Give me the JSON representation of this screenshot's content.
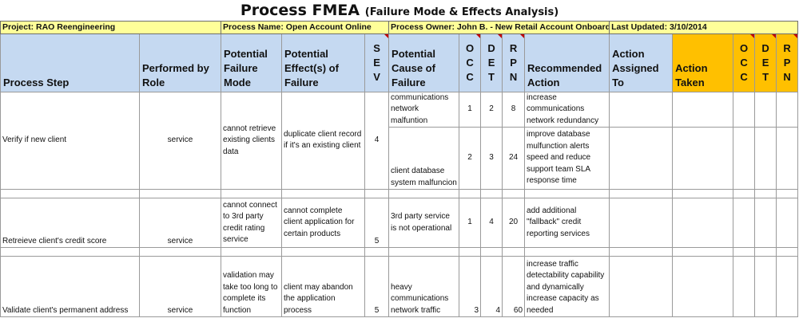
{
  "title": "Process FMEA",
  "subtitle": "(Failure Mode & Effects Analysis)",
  "info": {
    "project": "Project: RAO Reengineering",
    "process_name": "Process Name: Open Account Online",
    "process_owner": "Process Owner: John B. - New Retail Account Onboarding",
    "last_updated": "Last Updated: 3/10/2014"
  },
  "headers": {
    "process_step": "Process Step",
    "performed_by": "Performed by Role",
    "failure_mode": "Potential Failure Mode",
    "effects": "Potential Effect(s) of Failure",
    "sev": "S E V",
    "cause": "Potential Cause of Failure",
    "occ": "O C C",
    "det": "D E T",
    "rpn": "R P N",
    "recommended": "Recommended Action",
    "assigned": "Action Assigned To",
    "taken": "Action Taken",
    "occ2": "O C C",
    "det2": "D E T",
    "rpn2": "R P N"
  },
  "rows": [
    {
      "step": "Verify if new client",
      "role": "service",
      "failure_mode": "cannot retrieve existing clients data",
      "effects": "duplicate client record if it's an existing client",
      "sev": "4",
      "causes": [
        {
          "cause": "communications network malfuntion",
          "occ": "1",
          "det": "2",
          "rpn": "8",
          "action": "increase communications network redundancy"
        },
        {
          "cause": "client database system malfuncion",
          "occ": "2",
          "det": "3",
          "rpn": "24",
          "action": "improve database mulfunction alerts speed and reduce support team SLA response time"
        }
      ]
    },
    {
      "step": "Retreieve client's credit score",
      "role": "service",
      "failure_mode": "cannot connect to 3rd party credit rating service",
      "effects": "cannot complete client application for certain products",
      "sev": "5",
      "causes": [
        {
          "cause": "3rd party service is not operational",
          "occ": "1",
          "det": "4",
          "rpn": "20",
          "action": "add additional \"fallback\" credit reporting services"
        }
      ]
    },
    {
      "step": "Validate client's permanent address",
      "role": "service",
      "failure_mode": "validation may take too long to complete its function",
      "effects": "client may abandon the application process",
      "sev": "5",
      "causes": [
        {
          "cause": "heavy communications network traffic",
          "occ": "3",
          "det": "4",
          "rpn": "60",
          "action": "increase traffic detectability capability and dynamically increase capacity as needed"
        }
      ]
    }
  ]
}
